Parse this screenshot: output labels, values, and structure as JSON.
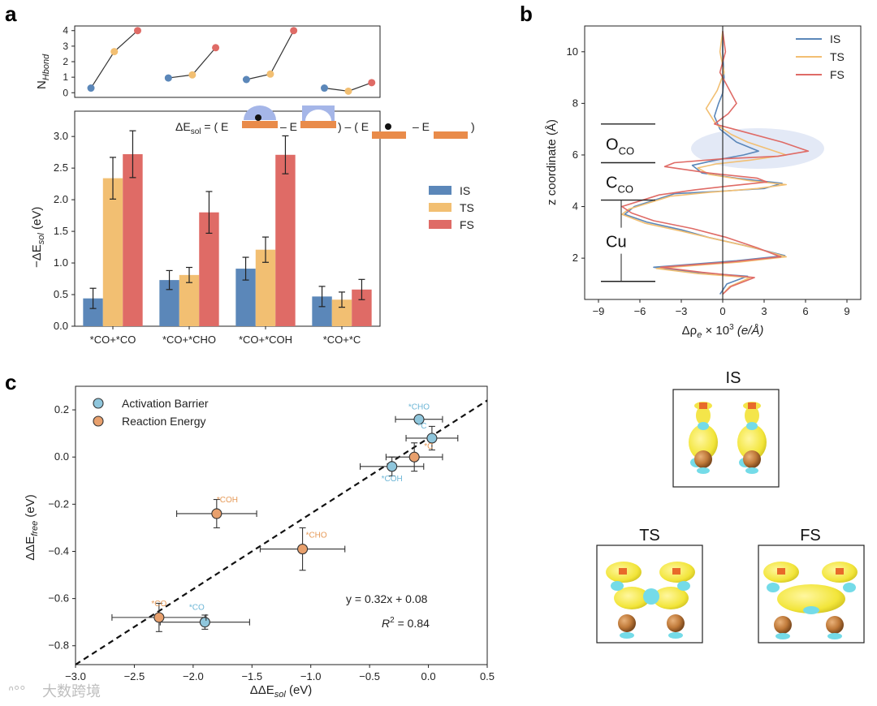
{
  "panels": {
    "a": "a",
    "b": "b",
    "c": "c"
  },
  "colors": {
    "IS": "#5b87b9",
    "TS": "#f2bf72",
    "FS": "#df6b66",
    "scatter_blue": "#8fc6dc",
    "scatter_orange": "#e8a06d",
    "blue_label": "#6cb6d6",
    "orange_label": "#e69a58",
    "grid_dark": "#222222",
    "schematic_blue": "#a5b6e8",
    "schematic_orange": "#e98b4a"
  },
  "equation": {
    "lhs": "ΔE",
    "lhs_sub": "sol",
    "eq": " = ( E",
    "minus1": "– E",
    "mid": ") – ( E",
    "minus2": "– E",
    "close": ")"
  },
  "panel_b": {
    "labels": [
      "O",
      "C",
      "Cu"
    ],
    "label_subs": [
      "CO",
      "CO",
      ""
    ]
  },
  "snapshots": {
    "titles": [
      "IS",
      "TS",
      "FS"
    ]
  },
  "watermark": "大数跨境",
  "chart_data": [
    {
      "id": "a-top",
      "type": "scatter",
      "ylabel": "N",
      "ylabel_sub": "Hbond",
      "ylim": [
        -0.3,
        4.3
      ],
      "yticks": [
        "0",
        "1",
        "2",
        "3",
        "4"
      ],
      "groups": [
        "*CO+*CO",
        "*CO+*CHO",
        "*CO+*COH",
        "*CO+*C"
      ],
      "series": [
        {
          "name": "IS",
          "values": [
            0.3,
            0.95,
            0.85,
            0.3
          ]
        },
        {
          "name": "TS",
          "values": [
            2.65,
            1.15,
            1.2,
            0.1
          ]
        },
        {
          "name": "FS",
          "values": [
            4.0,
            2.9,
            4.0,
            0.65
          ]
        }
      ]
    },
    {
      "id": "a-bottom",
      "type": "bar",
      "ylabel": "−ΔE",
      "ylabel_sub": "sol",
      "ylabel_unit": " (eV)",
      "ylim": [
        0,
        3.4
      ],
      "yticks": [
        "0.0",
        "0.5",
        "1.0",
        "1.5",
        "2.0",
        "2.5",
        "3.0"
      ],
      "categories": [
        "*CO+*CO",
        "*CO+*CHO",
        "*CO+*COH",
        "*CO+*C"
      ],
      "legend": [
        "IS",
        "TS",
        "FS"
      ],
      "legend_position": "right",
      "series": [
        {
          "name": "IS",
          "values": [
            0.44,
            0.73,
            0.91,
            0.47
          ],
          "err": [
            0.16,
            0.15,
            0.18,
            0.16
          ]
        },
        {
          "name": "TS",
          "values": [
            2.34,
            0.81,
            1.21,
            0.42
          ],
          "err": [
            0.33,
            0.12,
            0.2,
            0.12
          ]
        },
        {
          "name": "FS",
          "values": [
            2.72,
            1.8,
            2.71,
            0.58
          ],
          "err": [
            0.37,
            0.33,
            0.3,
            0.16
          ]
        }
      ]
    },
    {
      "id": "b",
      "type": "line",
      "xlabel": "Δρ",
      "xlabel_sub": "e",
      "xlabel_rest": " × 10",
      "xlabel_sup": "3",
      "xlabel_unit": " (e/Å)",
      "ylabel": "z coordinate (Å)",
      "xlim": [
        -10,
        10
      ],
      "ylim": [
        0.4,
        11
      ],
      "xticks": [
        "−9",
        "−6",
        "−3",
        "0",
        "3",
        "6",
        "9"
      ],
      "yticks": [
        "2",
        "4",
        "6",
        "8",
        "10"
      ],
      "legend": [
        "IS",
        "TS",
        "FS"
      ],
      "legend_position": "top-right",
      "layer_boundaries": [
        1.1,
        4.25,
        5.7,
        7.2
      ],
      "series": [
        {
          "name": "IS",
          "points": [
            [
              0,
              10.8
            ],
            [
              0,
              10
            ],
            [
              0.1,
              9
            ],
            [
              0,
              8.4
            ],
            [
              -0.3,
              8
            ],
            [
              -0.6,
              7.5
            ],
            [
              -0.2,
              7.0
            ],
            [
              1.0,
              6.5
            ],
            [
              2.6,
              6.15
            ],
            [
              1.5,
              6.0
            ],
            [
              -0.5,
              5.8
            ],
            [
              -2.2,
              5.6
            ],
            [
              -1.5,
              5.3
            ],
            [
              1.0,
              5.1
            ],
            [
              4.3,
              4.9
            ],
            [
              3.0,
              4.7
            ],
            [
              0,
              4.6
            ],
            [
              -3.5,
              4.5
            ],
            [
              -6.4,
              4.0
            ],
            [
              -7.1,
              3.7
            ],
            [
              -5.5,
              3.4
            ],
            [
              -3.0,
              3.1
            ],
            [
              -1.0,
              2.8
            ],
            [
              1.5,
              2.5
            ],
            [
              4.5,
              2.1
            ],
            [
              1.0,
              1.9
            ],
            [
              -5.0,
              1.65
            ],
            [
              -2.0,
              1.45
            ],
            [
              1.8,
              1.3
            ],
            [
              0.3,
              1.0
            ],
            [
              -0.2,
              0.6
            ]
          ]
        },
        {
          "name": "TS",
          "points": [
            [
              0,
              10.8
            ],
            [
              -0.2,
              10
            ],
            [
              0.1,
              9.2
            ],
            [
              -0.4,
              8.5
            ],
            [
              -1.2,
              7.8
            ],
            [
              -0.5,
              7.2
            ],
            [
              0.6,
              6.8
            ],
            [
              1.8,
              6.5
            ],
            [
              4.6,
              6.0
            ],
            [
              2.0,
              5.8
            ],
            [
              -0.5,
              5.65
            ],
            [
              -1.8,
              5.5
            ],
            [
              -1.0,
              5.25
            ],
            [
              2.0,
              5.0
            ],
            [
              4.6,
              4.85
            ],
            [
              2.5,
              4.7
            ],
            [
              -1.0,
              4.55
            ],
            [
              -3.8,
              4.4
            ],
            [
              -6.8,
              3.9
            ],
            [
              -7.3,
              3.7
            ],
            [
              -5.6,
              3.35
            ],
            [
              -3.0,
              3.05
            ],
            [
              -0.6,
              2.75
            ],
            [
              2.3,
              2.4
            ],
            [
              4.6,
              2.05
            ],
            [
              1.2,
              1.85
            ],
            [
              -4.8,
              1.6
            ],
            [
              -1.8,
              1.4
            ],
            [
              2.0,
              1.25
            ],
            [
              0.5,
              0.9
            ],
            [
              0,
              0.6
            ]
          ]
        },
        {
          "name": "FS",
          "points": [
            [
              0,
              10.8
            ],
            [
              0.2,
              10
            ],
            [
              -0.2,
              9.2
            ],
            [
              0.4,
              8.6
            ],
            [
              1.0,
              8.0
            ],
            [
              0.4,
              7.6
            ],
            [
              -0.6,
              7.2
            ],
            [
              1.5,
              6.9
            ],
            [
              4.3,
              6.5
            ],
            [
              6.2,
              6.15
            ],
            [
              4.0,
              5.95
            ],
            [
              0,
              5.85
            ],
            [
              -3.5,
              5.7
            ],
            [
              -4.2,
              5.55
            ],
            [
              -1.0,
              5.3
            ],
            [
              2.5,
              5.1
            ],
            [
              3.2,
              4.95
            ],
            [
              0.5,
              4.8
            ],
            [
              -2.0,
              4.65
            ],
            [
              -4.6,
              4.45
            ],
            [
              -7.3,
              4.0
            ],
            [
              -6.6,
              3.75
            ],
            [
              -5.0,
              3.45
            ],
            [
              -2.2,
              3.15
            ],
            [
              0.3,
              2.8
            ],
            [
              2.5,
              2.4
            ],
            [
              4.2,
              2.05
            ],
            [
              0.5,
              1.85
            ],
            [
              -4.5,
              1.65
            ],
            [
              -1.5,
              1.45
            ],
            [
              2.3,
              1.25
            ],
            [
              0.6,
              0.9
            ],
            [
              0,
              0.6
            ]
          ]
        }
      ]
    },
    {
      "id": "c",
      "type": "scatter",
      "xlabel": "ΔΔE",
      "xlabel_sub": "sol",
      "xlabel_unit": " (eV)",
      "ylabel": "ΔΔE",
      "ylabel_sub": "free",
      "ylabel_unit": " (eV)",
      "xlim": [
        -3.0,
        0.5
      ],
      "ylim": [
        -0.88,
        0.3
      ],
      "xticks": [
        "−3.0",
        "−2.5",
        "−2.0",
        "−1.5",
        "−1.0",
        "−0.5",
        "0.0",
        "0.5"
      ],
      "yticks": [
        "−0.8",
        "−0.6",
        "−0.4",
        "−0.2",
        "0.0",
        "0.2"
      ],
      "legend": [
        "Activation Barrier",
        "Reaction Energy"
      ],
      "legend_position": "top-left",
      "fit": {
        "slope": 0.32,
        "intercept": 0.08,
        "text": "y = 0.32x + 0.08",
        "r2_label": "R",
        "r2_sup": "2",
        "r2_value": " = 0.84"
      },
      "series": [
        {
          "name": "Activation Barrier",
          "points": [
            {
              "label": "*CHO",
              "x": -0.08,
              "y": 0.16,
              "xerr": 0.2,
              "yerr": 0.0
            },
            {
              "label": "*C",
              "x": 0.03,
              "y": 0.08,
              "xerr": 0.22,
              "yerr": 0.05
            },
            {
              "label": "*COH",
              "x": -0.31,
              "y": -0.04,
              "xerr": 0.27,
              "yerr": 0.04
            },
            {
              "label": "*CO",
              "x": -1.9,
              "y": -0.7,
              "xerr": 0.38,
              "yerr": 0.03
            }
          ]
        },
        {
          "name": "Reaction Energy",
          "points": [
            {
              "label": "*C",
              "x": -0.12,
              "y": 0.0,
              "xerr": 0.24,
              "yerr": 0.06
            },
            {
              "label": "*COH",
              "x": -1.8,
              "y": -0.24,
              "xerr": 0.34,
              "yerr": 0.06
            },
            {
              "label": "*CHO",
              "x": -1.07,
              "y": -0.39,
              "xerr": 0.36,
              "yerr": 0.09
            },
            {
              "label": "*CO",
              "x": -2.29,
              "y": -0.68,
              "xerr": 0.4,
              "yerr": 0.06
            }
          ]
        }
      ]
    }
  ]
}
